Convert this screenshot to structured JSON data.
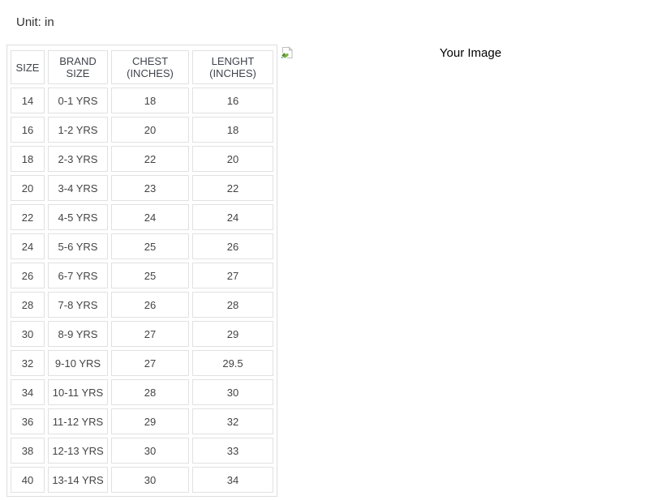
{
  "page": {
    "unit_label": "Unit: in"
  },
  "size_chart": {
    "headers": [
      "SIZE",
      "BRAND SIZE",
      "CHEST (INCHES)",
      "LENGHT (INCHES)"
    ],
    "column_keys": [
      "size",
      "brand_size",
      "chest",
      "length"
    ],
    "rows": [
      {
        "size": "14",
        "brand_size": "0-1 YRS",
        "chest": "18",
        "length": "16"
      },
      {
        "size": "16",
        "brand_size": "1-2 YRS",
        "chest": "20",
        "length": "18"
      },
      {
        "size": "18",
        "brand_size": "2-3 YRS",
        "chest": "22",
        "length": "20"
      },
      {
        "size": "20",
        "brand_size": "3-4 YRS",
        "chest": "23",
        "length": "22"
      },
      {
        "size": "22",
        "brand_size": "4-5 YRS",
        "chest": "24",
        "length": "24"
      },
      {
        "size": "24",
        "brand_size": "5-6 YRS",
        "chest": "25",
        "length": "26"
      },
      {
        "size": "26",
        "brand_size": "6-7 YRS",
        "chest": "25",
        "length": "27"
      },
      {
        "size": "28",
        "brand_size": "7-8 YRS",
        "chest": "26",
        "length": "28"
      },
      {
        "size": "30",
        "brand_size": "8-9 YRS",
        "chest": "27",
        "length": "29"
      },
      {
        "size": "32",
        "brand_size": "9-10 YRS",
        "chest": "27",
        "length": "29.5"
      },
      {
        "size": "34",
        "brand_size": "10-11 YRS",
        "chest": "28",
        "length": "30"
      },
      {
        "size": "36",
        "brand_size": "11-12 YRS",
        "chest": "29",
        "length": "32"
      },
      {
        "size": "38",
        "brand_size": "12-13 YRS",
        "chest": "30",
        "length": "33"
      },
      {
        "size": "40",
        "brand_size": "13-14 YRS",
        "chest": "30",
        "length": "34"
      }
    ]
  },
  "image_placeholder": {
    "alt_text": "Your Image",
    "icon": "broken-image-icon"
  },
  "colors": {
    "table_border": "#dddddd",
    "cell_border": "#e1e1e1",
    "cell_text": "#444444",
    "label_text": "#333333",
    "alt_text": "#000000"
  }
}
